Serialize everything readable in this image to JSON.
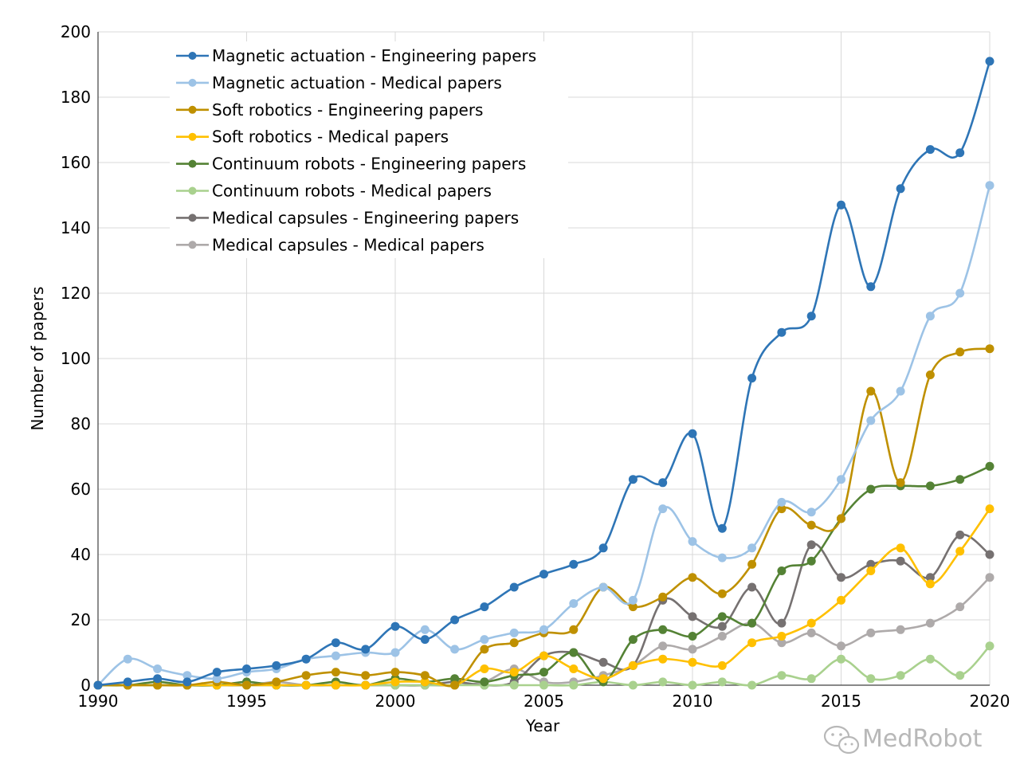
{
  "chart_data": {
    "type": "line",
    "title": "",
    "xlabel": "Year",
    "ylabel": "Number of papers",
    "xlim": [
      1990,
      2020
    ],
    "ylim": [
      0,
      200
    ],
    "xticks": [
      "1990",
      "1995",
      "2000",
      "2005",
      "2010",
      "2015",
      "2020"
    ],
    "yticks": [
      "0",
      "20",
      "40",
      "60",
      "80",
      "100",
      "120",
      "140",
      "160",
      "180",
      "200"
    ],
    "grid": true,
    "legend_position": "top-left",
    "x": [
      1990,
      1991,
      1992,
      1993,
      1994,
      1995,
      1996,
      1997,
      1998,
      1999,
      2000,
      2001,
      2002,
      2003,
      2004,
      2005,
      2006,
      2007,
      2008,
      2009,
      2010,
      2011,
      2012,
      2013,
      2014,
      2015,
      2016,
      2017,
      2018,
      2019,
      2020
    ],
    "series": [
      {
        "name": "Magnetic actuation - Engineering papers",
        "color": "#2e75b6",
        "values": [
          0,
          1,
          2,
          1,
          4,
          5,
          6,
          8,
          13,
          11,
          18,
          14,
          20,
          24,
          30,
          34,
          37,
          42,
          63,
          62,
          77,
          48,
          94,
          108,
          113,
          147,
          122,
          152,
          164,
          163,
          191
        ]
      },
      {
        "name": "Magnetic actuation - Medical papers",
        "color": "#9dc3e6",
        "values": [
          0,
          8,
          5,
          3,
          2,
          4,
          5,
          8,
          9,
          10,
          10,
          17,
          11,
          14,
          16,
          17,
          25,
          30,
          26,
          54,
          44,
          39,
          42,
          56,
          53,
          63,
          81,
          90,
          113,
          120,
          153
        ]
      },
      {
        "name": "Soft robotics - Engineering papers",
        "color": "#bf9000",
        "values": [
          0,
          0,
          0,
          0,
          1,
          0,
          1,
          3,
          4,
          3,
          4,
          3,
          0,
          11,
          13,
          16,
          17,
          30,
          24,
          27,
          33,
          28,
          37,
          54,
          49,
          51,
          90,
          62,
          95,
          102,
          103
        ]
      },
      {
        "name": "Soft robotics - Medical papers",
        "color": "#ffc000",
        "values": [
          0,
          0,
          0,
          0,
          0,
          0,
          0,
          0,
          0,
          0,
          1,
          1,
          0,
          5,
          4,
          9,
          5,
          2,
          6,
          8,
          7,
          6,
          13,
          15,
          19,
          26,
          35,
          42,
          31,
          41,
          54
        ]
      },
      {
        "name": "Continuum robots - Engineering papers",
        "color": "#548235",
        "values": [
          0,
          0,
          1,
          0,
          0,
          1,
          0,
          0,
          1,
          0,
          2,
          1,
          2,
          1,
          3,
          4,
          10,
          1,
          14,
          17,
          15,
          21,
          19,
          35,
          38,
          51,
          60,
          61,
          61,
          63,
          67
        ]
      },
      {
        "name": "Continuum robots - Medical papers",
        "color": "#a9d18e",
        "values": [
          0,
          0,
          0,
          0,
          0,
          0,
          0,
          0,
          0,
          0,
          0,
          0,
          0,
          0,
          0,
          0,
          0,
          1,
          0,
          1,
          0,
          1,
          0,
          3,
          2,
          8,
          2,
          3,
          8,
          3,
          12
        ]
      },
      {
        "name": "Medical capsules - Engineering papers",
        "color": "#767171",
        "values": [
          0,
          0,
          0,
          0,
          0,
          0,
          0,
          0,
          0,
          0,
          0,
          0,
          1,
          0,
          1,
          9,
          10,
          7,
          6,
          26,
          21,
          18,
          30,
          19,
          43,
          33,
          37,
          38,
          33,
          46,
          40
        ]
      },
      {
        "name": "Medical capsules - Medical papers",
        "color": "#aeaaaa",
        "values": [
          0,
          0,
          0,
          0,
          0,
          0,
          1,
          0,
          0,
          0,
          0,
          0,
          0,
          1,
          5,
          1,
          1,
          3,
          6,
          12,
          11,
          15,
          19,
          13,
          16,
          12,
          16,
          17,
          19,
          24,
          33
        ]
      }
    ]
  },
  "watermark": {
    "text": "MedRobot",
    "icon": "wechat-icon"
  }
}
